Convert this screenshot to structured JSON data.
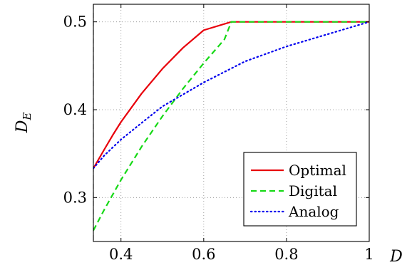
{
  "chart_data": {
    "type": "line",
    "xlabel": "D",
    "ylabel": {
      "main": "D",
      "sub": "E"
    },
    "xlim": [
      0.3333,
      1.0
    ],
    "ylim": [
      0.25,
      0.52
    ],
    "x_ticks": [
      {
        "value": 0.4,
        "label": "0.4"
      },
      {
        "value": 0.6,
        "label": "0.6"
      },
      {
        "value": 0.8,
        "label": "0.8"
      },
      {
        "value": 1.0,
        "label": "1"
      }
    ],
    "y_ticks": [
      {
        "value": 0.3,
        "label": "0.3"
      },
      {
        "value": 0.4,
        "label": "0.4"
      },
      {
        "value": 0.5,
        "label": "0.5"
      }
    ],
    "grid": true,
    "grid_style": "dotted",
    "vertical_reference_line": {
      "x": 0.3333,
      "style": "dashed"
    },
    "legend_position": "bottom-right",
    "series": [
      {
        "name": "Optimal",
        "color": "#e8000b",
        "dash": "solid",
        "points": [
          [
            0.3333,
            0.3333
          ],
          [
            0.36,
            0.355
          ],
          [
            0.38,
            0.371
          ],
          [
            0.4,
            0.386
          ],
          [
            0.45,
            0.4185
          ],
          [
            0.5,
            0.4465
          ],
          [
            0.55,
            0.4705
          ],
          [
            0.6,
            0.4905
          ],
          [
            0.6667,
            0.5
          ],
          [
            0.7,
            0.5
          ],
          [
            0.8,
            0.5
          ],
          [
            0.9,
            0.5
          ],
          [
            1.0,
            0.5
          ]
        ]
      },
      {
        "name": "Digital",
        "color": "#16d916",
        "dash": "dashed",
        "points": [
          [
            0.3333,
            0.2626
          ],
          [
            0.36,
            0.2866
          ],
          [
            0.4,
            0.3201
          ],
          [
            0.45,
            0.358
          ],
          [
            0.5,
            0.3924
          ],
          [
            0.55,
            0.424
          ],
          [
            0.6,
            0.453
          ],
          [
            0.65,
            0.48
          ],
          [
            0.6667,
            0.5
          ],
          [
            0.7,
            0.5
          ],
          [
            0.8,
            0.5
          ],
          [
            0.9,
            0.5
          ],
          [
            1.0,
            0.5
          ]
        ]
      },
      {
        "name": "Analog",
        "color": "#0000ee",
        "dash": "dotted",
        "points": [
          [
            0.3333,
            0.3333
          ],
          [
            0.36,
            0.3481
          ],
          [
            0.4,
            0.366
          ],
          [
            0.45,
            0.385
          ],
          [
            0.5,
            0.4037
          ],
          [
            0.6,
            0.431
          ],
          [
            0.7,
            0.455
          ],
          [
            0.8,
            0.472
          ],
          [
            0.9,
            0.486
          ],
          [
            1.0,
            0.5
          ]
        ]
      }
    ]
  }
}
